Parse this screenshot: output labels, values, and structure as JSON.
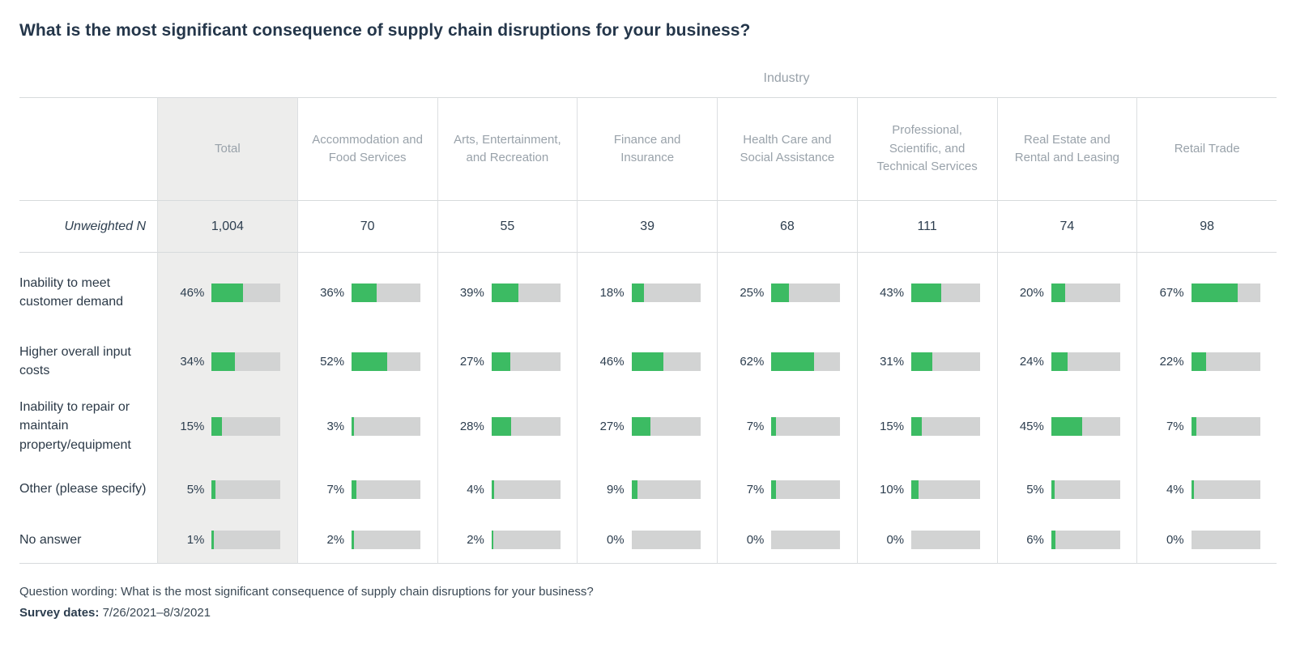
{
  "page": {
    "title": "What is the most significant consequence of supply chain disruptions for your business?",
    "industry_label": "Industry",
    "footer": {
      "question_wording": "Question wording: What is the most significant consequence of supply chain disruptions for your business?",
      "survey_dates_label": "Survey dates:",
      "survey_dates_value": "7/26/2021–8/3/2021"
    }
  },
  "chart_data": {
    "type": "bar",
    "title": "What is the most significant consequence of supply chain disruptions for your business?",
    "group_header": "Industry",
    "columns": [
      "Total",
      "Accommodation and Food Services",
      "Arts, Entertainment, and Recreation",
      "Finance and Insurance",
      "Health Care and Social Assistance",
      "Professional, Scientific, and Technical Services",
      "Real Estate and Rental and Leasing",
      "Retail Trade"
    ],
    "unweighted_n_label": "Unweighted N",
    "unweighted_n": [
      "1,004",
      "70",
      "55",
      "39",
      "68",
      "111",
      "74",
      "98"
    ],
    "categories": [
      "Inability to meet customer demand",
      "Higher overall input costs",
      "Inability to repair or maintain property/equipment",
      "Other (please specify)",
      "No answer"
    ],
    "series": [
      {
        "name": "Total",
        "values": [
          46,
          34,
          15,
          5,
          1
        ]
      },
      {
        "name": "Accommodation and Food Services",
        "values": [
          36,
          52,
          3,
          7,
          2
        ]
      },
      {
        "name": "Arts, Entertainment, and Recreation",
        "values": [
          39,
          27,
          28,
          4,
          2
        ]
      },
      {
        "name": "Finance and Insurance",
        "values": [
          18,
          46,
          27,
          9,
          0
        ]
      },
      {
        "name": "Health Care and Social Assistance",
        "values": [
          25,
          62,
          7,
          7,
          0
        ]
      },
      {
        "name": "Professional, Scientific, and Technical Services",
        "values": [
          43,
          31,
          15,
          10,
          0
        ]
      },
      {
        "name": "Real Estate and Rental and Leasing",
        "values": [
          20,
          24,
          45,
          5,
          6
        ]
      },
      {
        "name": "Retail Trade",
        "values": [
          67,
          22,
          7,
          4,
          0
        ]
      }
    ],
    "value_suffix": "%",
    "bar_max": 100,
    "colors": {
      "bar_fill": "#3cbb63",
      "bar_track": "#d2d3d3",
      "total_column_bg": "#ededec"
    }
  }
}
